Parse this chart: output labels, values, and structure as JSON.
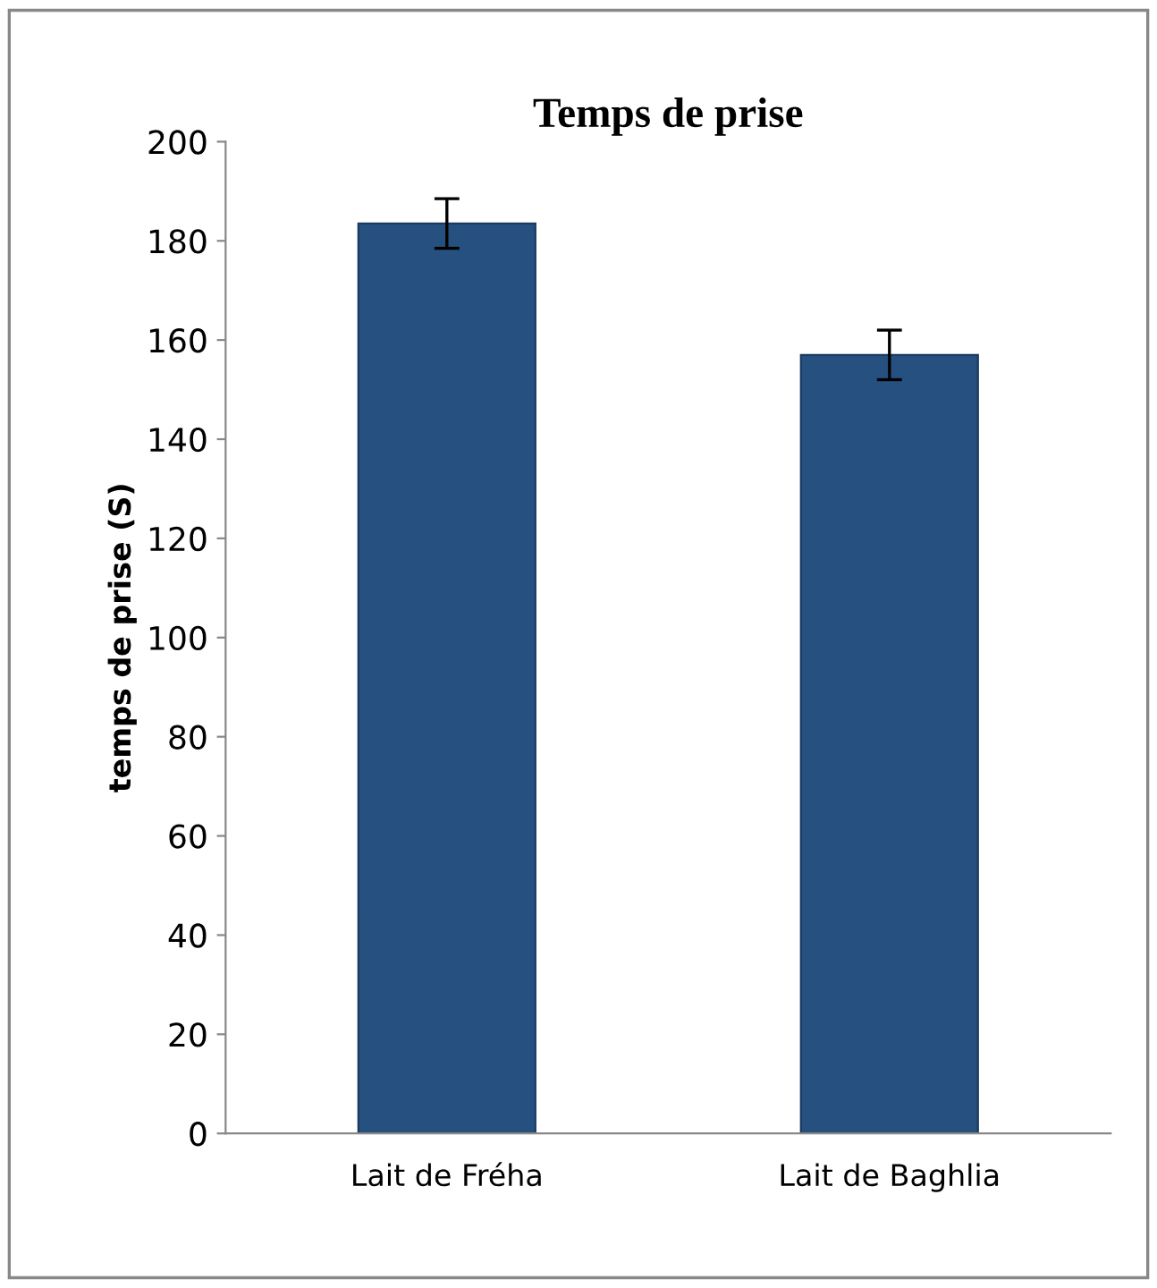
{
  "chart_data": {
    "type": "bar",
    "title": "Temps de prise",
    "ylabel": "temps de prise (S)",
    "categories": [
      "Lait de Fréha",
      "Lait de Baghlia"
    ],
    "values": [
      183.5,
      157
    ],
    "errors": [
      5,
      5
    ],
    "color": "#26507f",
    "ylim": [
      0,
      200
    ],
    "yticks": [
      0,
      20,
      40,
      60,
      80,
      100,
      120,
      140,
      160,
      180,
      200
    ],
    "grid": false,
    "legend": false
  }
}
